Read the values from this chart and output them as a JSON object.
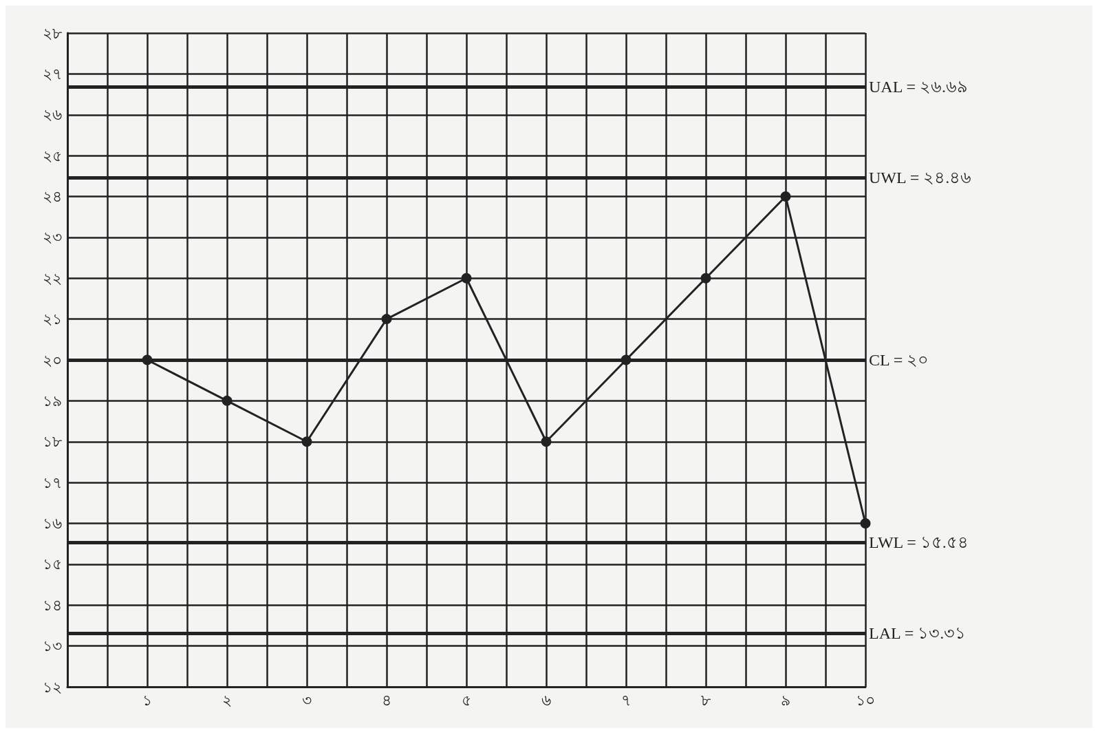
{
  "chart_data": {
    "type": "line",
    "x": [
      1,
      2,
      3,
      4,
      5,
      6,
      7,
      8,
      9,
      10
    ],
    "values": [
      20,
      19,
      18,
      21,
      22,
      18,
      20,
      22,
      24,
      16
    ],
    "color": "#222222",
    "marker": "circle",
    "line_style": "solid",
    "grid": true,
    "xlim": [
      0,
      10
    ],
    "xticks": [
      {
        "value": 0,
        "label": null
      },
      {
        "value": 0.5,
        "label": null
      },
      {
        "value": 1,
        "label": "১"
      },
      {
        "value": 1.5,
        "label": null
      },
      {
        "value": 2,
        "label": "২"
      },
      {
        "value": 2.5,
        "label": null
      },
      {
        "value": 3,
        "label": "৩"
      },
      {
        "value": 3.5,
        "label": null
      },
      {
        "value": 4,
        "label": "৪"
      },
      {
        "value": 4.5,
        "label": null
      },
      {
        "value": 5,
        "label": "৫"
      },
      {
        "value": 5.5,
        "label": null
      },
      {
        "value": 6,
        "label": "৬"
      },
      {
        "value": 6.5,
        "label": null
      },
      {
        "value": 7,
        "label": "৭"
      },
      {
        "value": 7.5,
        "label": null
      },
      {
        "value": 8,
        "label": "৮"
      },
      {
        "value": 8.5,
        "label": null
      },
      {
        "value": 9,
        "label": "৯"
      },
      {
        "value": 9.5,
        "label": null
      },
      {
        "value": 10,
        "label": "১০"
      }
    ],
    "ylim": [
      12,
      28
    ],
    "yticks": [
      {
        "value": 12,
        "label": "১২"
      },
      {
        "value": 13,
        "label": "১৩"
      },
      {
        "value": 14,
        "label": "১৪"
      },
      {
        "value": 15,
        "label": "১৫"
      },
      {
        "value": 16,
        "label": "১৬"
      },
      {
        "value": 17,
        "label": "১৭"
      },
      {
        "value": 18,
        "label": "১৮"
      },
      {
        "value": 19,
        "label": "১৯"
      },
      {
        "value": 20,
        "label": "২০"
      },
      {
        "value": 21,
        "label": "২১"
      },
      {
        "value": 22,
        "label": "২২"
      },
      {
        "value": 23,
        "label": "২৩"
      },
      {
        "value": 24,
        "label": "২৪"
      },
      {
        "value": 25,
        "label": "২৫"
      },
      {
        "value": 26,
        "label": "২৬"
      },
      {
        "value": 27,
        "label": "২৭"
      },
      {
        "value": 28,
        "label": "২৮"
      }
    ],
    "ref_lines": [
      {
        "axis": "y",
        "value": 26.69,
        "label": "UAL = ২৬.৬৯"
      },
      {
        "axis": "y",
        "value": 24.46,
        "label": "UWL = ২৪.৪৬"
      },
      {
        "axis": "y",
        "value": 20,
        "label": "CL = ২০"
      },
      {
        "axis": "y",
        "value": 15.54,
        "label": "LWL = ১৫.৫৪"
      },
      {
        "axis": "y",
        "value": 13.31,
        "label": "LAL = ১৩.৩১"
      }
    ]
  }
}
